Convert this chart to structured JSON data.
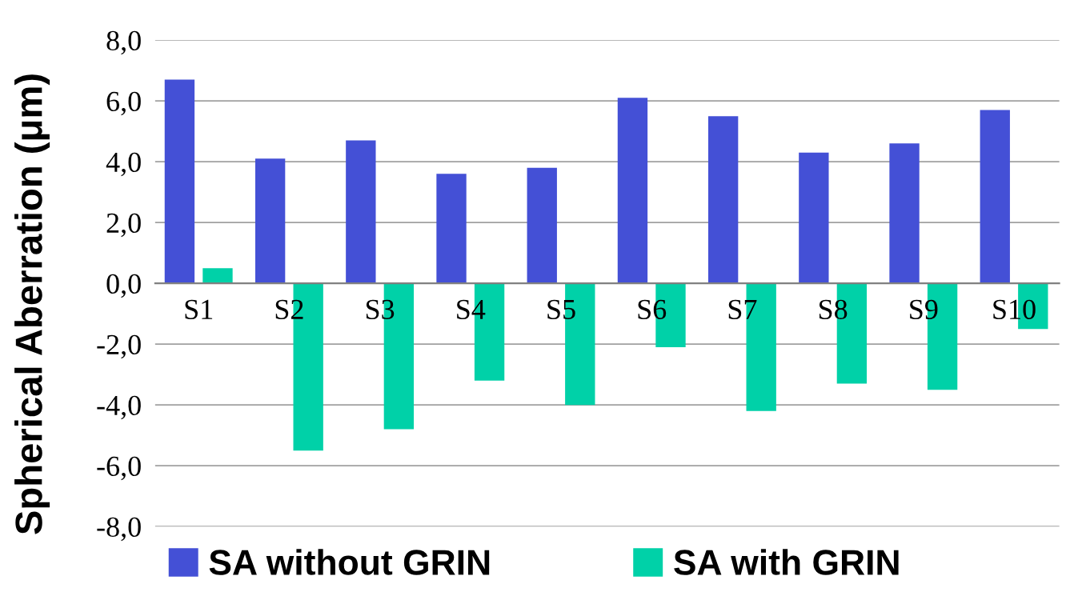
{
  "chart_data": {
    "type": "bar",
    "ylabel": "Spherical Aberration (μm)",
    "categories": [
      "S1",
      "S2",
      "S3",
      "S4",
      "S5",
      "S6",
      "S7",
      "S8",
      "S9",
      "S10"
    ],
    "series": [
      {
        "name": "SA without GRIN",
        "color": "#4450d6",
        "values": [
          6.7,
          4.1,
          4.7,
          3.6,
          3.8,
          6.1,
          5.5,
          4.3,
          4.6,
          5.7
        ]
      },
      {
        "name": "SA with GRIN",
        "color": "#00d1a8",
        "values": [
          0.5,
          -5.5,
          -4.8,
          -3.2,
          -4.0,
          -2.1,
          -4.2,
          -3.3,
          -3.5,
          -1.5
        ]
      }
    ],
    "ylim": [
      -8,
      8
    ],
    "yticks": [
      {
        "value": -8,
        "label": "-8,0"
      },
      {
        "value": -6,
        "label": "-6,0"
      },
      {
        "value": -4,
        "label": "-4,0"
      },
      {
        "value": -2,
        "label": "-2,0"
      },
      {
        "value": 0,
        "label": "0,0"
      },
      {
        "value": 2,
        "label": "2,0"
      },
      {
        "value": 4,
        "label": "4,0"
      },
      {
        "value": 6,
        "label": "6,0"
      },
      {
        "value": 8,
        "label": "8,0"
      }
    ],
    "grid": "y",
    "legend": "bottom"
  }
}
